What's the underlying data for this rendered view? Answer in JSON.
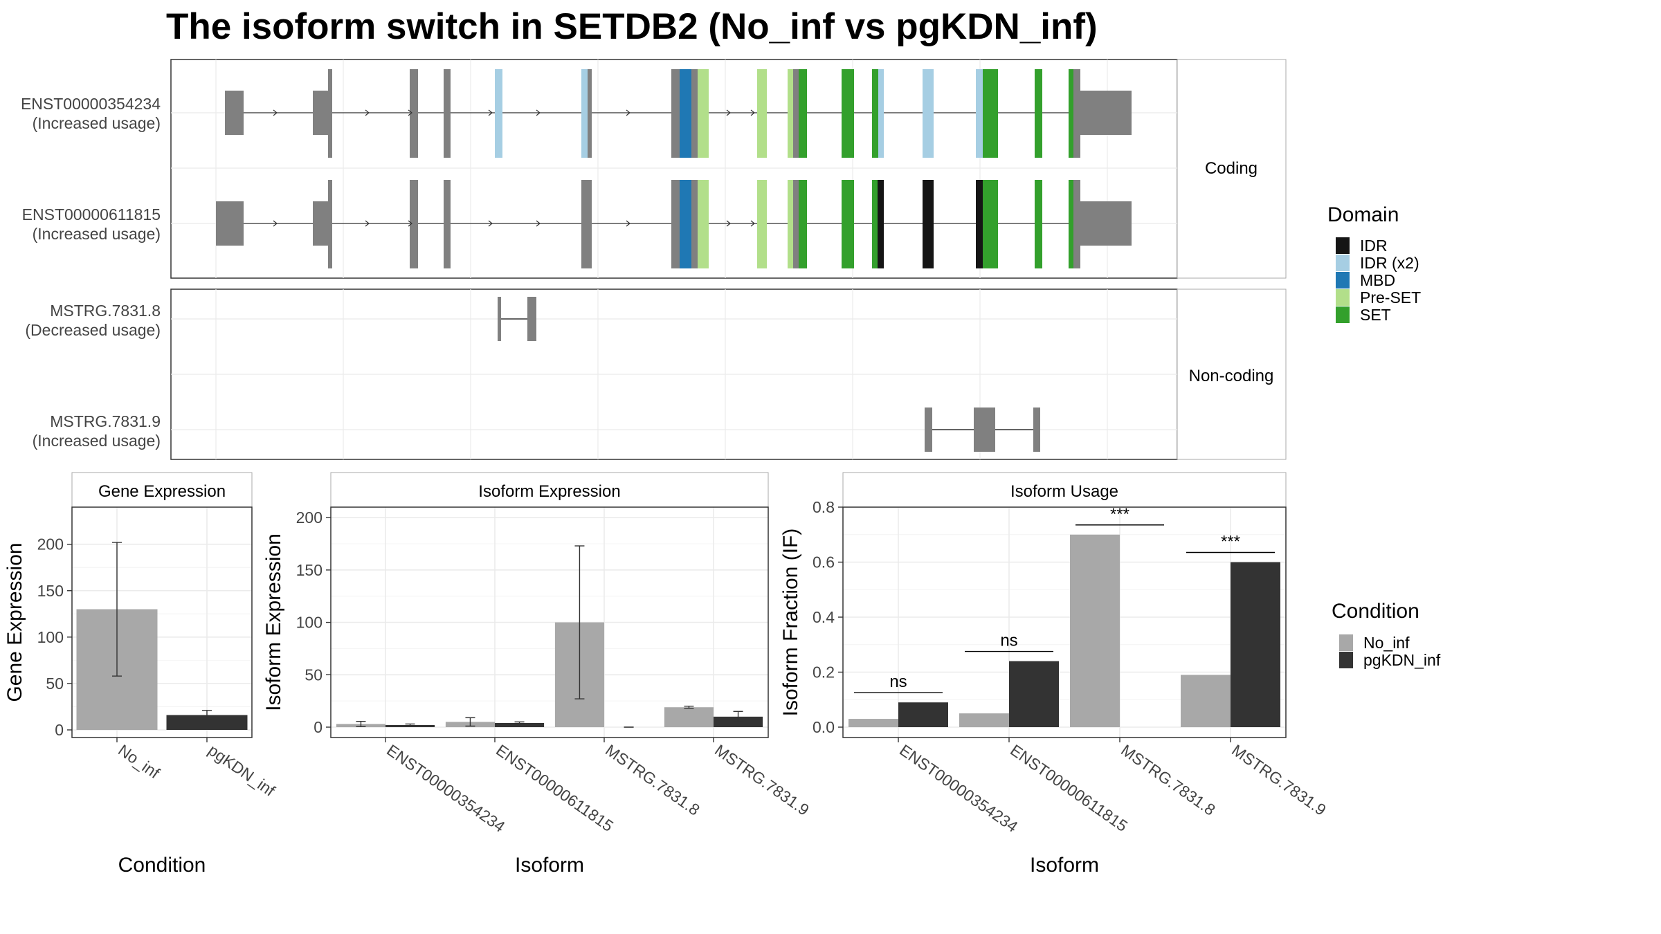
{
  "title": "The isoform switch in SETDB2 (No_inf vs pgKDN_inf)",
  "facets": {
    "coding": "Coding",
    "noncoding": "Non-coding"
  },
  "domain_legend": {
    "title": "Domain",
    "items": [
      {
        "label": "IDR",
        "color": "#151515"
      },
      {
        "label": "IDR (x2)",
        "color": "#a6cee3"
      },
      {
        "label": "MBD",
        "color": "#1f78b4"
      },
      {
        "label": "Pre-SET",
        "color": "#b2df8a"
      },
      {
        "label": "SET",
        "color": "#33a02c"
      }
    ]
  },
  "condition_legend": {
    "title": "Condition",
    "items": [
      {
        "label": "No_inf",
        "color": "#a8a8a8"
      },
      {
        "label": "pgKDN_inf",
        "color": "#333333"
      }
    ]
  },
  "transcripts": [
    {
      "id": "ENST00000354234",
      "usage": "(Increased usage)",
      "group": "Coding"
    },
    {
      "id": "ENST00000611815",
      "usage": "(Increased usage)",
      "group": "Coding"
    },
    {
      "id": "MSTRG.7831.8",
      "usage": "(Decreased usage)",
      "group": "Non-coding"
    },
    {
      "id": "MSTRG.7831.9",
      "usage": "(Increased usage)",
      "group": "Non-coding"
    }
  ],
  "chart_data": [
    {
      "type": "bar",
      "panel": "Gene Expression",
      "xlabel": "Condition",
      "ylabel": "Gene Expression",
      "categories": [
        "No_inf",
        "pgKDN_inf"
      ],
      "values": [
        130,
        16
      ],
      "error_low": [
        58,
        11
      ],
      "error_high": [
        202,
        21
      ],
      "colors": [
        "#a8a8a8",
        "#333333"
      ],
      "ylim": [
        0,
        240
      ],
      "yticks": [
        0,
        50,
        100,
        150,
        200
      ]
    },
    {
      "type": "bar",
      "panel": "Isoform Expression",
      "xlabel": "Isoform",
      "ylabel": "Isoform Expression",
      "categories": [
        "ENST00000354234",
        "ENST00000611815",
        "MSTRG.7831.8",
        "MSTRG.7831.9"
      ],
      "series": [
        {
          "name": "No_inf",
          "values": [
            3,
            5,
            100,
            19
          ],
          "error_low": [
            0.5,
            1,
            27,
            18
          ],
          "error_high": [
            5.5,
            9,
            173,
            20
          ]
        },
        {
          "name": "pgKDN_inf",
          "values": [
            2,
            4,
            0,
            10
          ],
          "error_low": [
            1,
            3,
            0,
            5
          ],
          "error_high": [
            3,
            5,
            0,
            15
          ]
        }
      ],
      "ylim": [
        0,
        210
      ],
      "yticks": [
        0,
        50,
        100,
        150,
        200
      ]
    },
    {
      "type": "bar",
      "panel": "Isoform Usage",
      "xlabel": "Isoform",
      "ylabel": "Isoform Fraction (IF)",
      "categories": [
        "ENST00000354234",
        "ENST00000611815",
        "MSTRG.7831.8",
        "MSTRG.7831.9"
      ],
      "series": [
        {
          "name": "No_inf",
          "values": [
            0.03,
            0.05,
            0.7,
            0.19
          ]
        },
        {
          "name": "pgKDN_inf",
          "values": [
            0.09,
            0.24,
            0.0,
            0.6
          ]
        }
      ],
      "significance": [
        "ns",
        "ns",
        "***",
        "***"
      ],
      "ylim": [
        0,
        0.8
      ],
      "yticks": [
        0.0,
        0.2,
        0.4,
        0.6,
        0.8
      ]
    }
  ]
}
